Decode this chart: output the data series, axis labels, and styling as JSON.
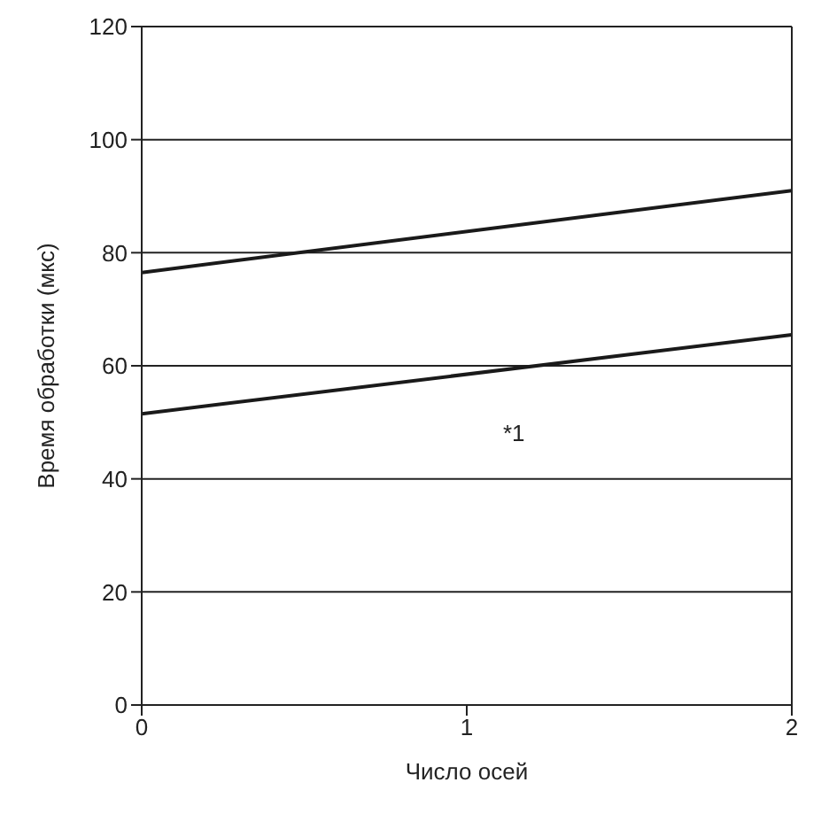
{
  "chart_data": {
    "type": "line",
    "xlabel": "Число осей",
    "ylabel": "Время обработки (мкс)",
    "x": [
      0,
      2
    ],
    "series": [
      {
        "color": "#1a1a1a",
        "values": [
          76.5,
          91
        ]
      },
      {
        "color": "#1a1a1a",
        "values": [
          51.5,
          65.5
        ]
      }
    ],
    "xlim": [
      0,
      2
    ],
    "xticks": [
      0,
      1,
      2
    ],
    "ylim": [
      0,
      120
    ],
    "yticks": [
      0,
      20,
      40,
      60,
      80,
      100,
      120
    ],
    "grid": "y",
    "legend": false,
    "marker": "none",
    "line_style": "solid",
    "annotations": [
      "*1"
    ]
  }
}
